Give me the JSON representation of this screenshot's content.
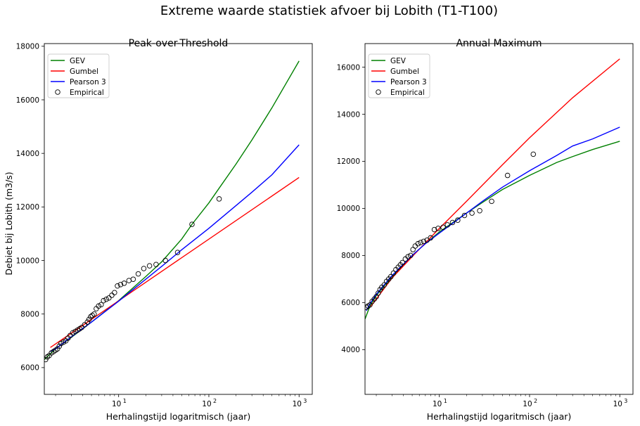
{
  "figure": {
    "title": "Extreme waarde statistiek afvoer bij Lobith (T1-T100)"
  },
  "chart_data": [
    {
      "type": "line",
      "title": "Peak-over-Threshold",
      "xlabel": "Herhalingstijd logaritmisch (jaar)",
      "ylabel": "Debiet bij Lobith (m3/s)",
      "xscale": "log",
      "xlim": [
        1.5,
        1400
      ],
      "ylim": [
        5000,
        18100
      ],
      "yticks": [
        6000,
        8000,
        10000,
        12000,
        14000,
        16000,
        18000
      ],
      "xticks": [
        {
          "value": 10,
          "base": "10",
          "exp": "1"
        },
        {
          "value": 100,
          "base": "10",
          "exp": "2"
        },
        {
          "value": 1000,
          "base": "10",
          "exp": "3"
        }
      ],
      "legend_position": "upper-left",
      "series": [
        {
          "name": "GEV",
          "color": "#008000",
          "x": [
            1.5,
            2,
            3,
            5,
            10,
            20,
            30,
            50,
            65,
            100,
            130,
            200,
            300,
            500,
            700,
            1000
          ],
          "y": [
            6300,
            6700,
            7130,
            7700,
            8500,
            9400,
            9950,
            10800,
            11350,
            12150,
            12700,
            13600,
            14500,
            15700,
            16550,
            17450
          ]
        },
        {
          "name": "Gumbel",
          "color": "#ff0000",
          "x": [
            1.75,
            1000
          ],
          "y": [
            6750,
            13100
          ]
        },
        {
          "name": "Pearson 3",
          "color": "#0000ff",
          "x": [
            1.75,
            2,
            3,
            5,
            10,
            20,
            30,
            50,
            100,
            200,
            300,
            500,
            1000
          ],
          "y": [
            6600,
            6700,
            7150,
            7700,
            8480,
            9300,
            9780,
            10400,
            11200,
            12050,
            12550,
            13200,
            14320
          ]
        },
        {
          "name": "Empirical",
          "color": "#000000",
          "marker": "circle-open",
          "x": [
            1.55,
            1.62,
            1.7,
            1.8,
            1.9,
            2.0,
            2.1,
            2.2,
            2.3,
            2.45,
            2.6,
            2.75,
            2.9,
            3.1,
            3.3,
            3.5,
            3.7,
            3.9,
            4.2,
            4.5,
            4.7,
            4.9,
            5.1,
            5.35,
            5.65,
            6.0,
            6.4,
            6.8,
            7.3,
            7.8,
            8.4,
            9.0,
            9.7,
            10.5,
            11.5,
            13.0,
            14.5,
            16.5,
            19.0,
            22.0,
            26.0,
            33.0,
            45.0,
            65.0,
            130.0
          ],
          "y": [
            6300,
            6400,
            6450,
            6550,
            6600,
            6650,
            6700,
            6800,
            6900,
            6950,
            7000,
            7100,
            7200,
            7300,
            7350,
            7400,
            7450,
            7500,
            7600,
            7700,
            7800,
            7900,
            7950,
            8000,
            8200,
            8300,
            8350,
            8500,
            8550,
            8600,
            8700,
            8800,
            9050,
            9100,
            9150,
            9250,
            9300,
            9500,
            9700,
            9800,
            9850,
            10000,
            10300,
            11350,
            12300
          ]
        }
      ]
    },
    {
      "type": "line",
      "title": "Annual Maximum",
      "xlabel": "Herhalingstijd logaritmisch (jaar)",
      "ylabel": "",
      "xscale": "log",
      "xlim": [
        1.5,
        1400
      ],
      "ylim": [
        2100,
        17000
      ],
      "yticks": [
        4000,
        6000,
        8000,
        10000,
        12000,
        14000,
        16000
      ],
      "xticks": [
        {
          "value": 10,
          "base": "10",
          "exp": "1"
        },
        {
          "value": 100,
          "base": "10",
          "exp": "2"
        },
        {
          "value": 1000,
          "base": "10",
          "exp": "3"
        }
      ],
      "legend_position": "upper-left",
      "series": [
        {
          "name": "GEV",
          "color": "#008000",
          "x": [
            1.5,
            1.7,
            2,
            3,
            5,
            7,
            10,
            20,
            30,
            50,
            100,
            200,
            300,
            500,
            1000
          ],
          "y": [
            5300,
            5850,
            6300,
            7100,
            8000,
            8500,
            9000,
            9800,
            10250,
            10800,
            11400,
            11950,
            12200,
            12500,
            12850
          ]
        },
        {
          "name": "Gumbel",
          "color": "#ff0000",
          "x": [
            1.75,
            2,
            3,
            5,
            10,
            20,
            50,
            100,
            300,
            1000
          ],
          "y": [
            5850,
            6150,
            7050,
            7950,
            9150,
            10300,
            11850,
            13000,
            14700,
            16350
          ]
        },
        {
          "name": "Pearson 3",
          "color": "#0000ff",
          "x": [
            1.55,
            1.7,
            2,
            3,
            5,
            7,
            10,
            20,
            30,
            50,
            100,
            200,
            300,
            500,
            1000
          ],
          "y": [
            5650,
            5950,
            6350,
            7150,
            8000,
            8500,
            8950,
            9800,
            10300,
            10900,
            11600,
            12250,
            12650,
            12950,
            13450
          ]
        },
        {
          "name": "Empirical",
          "color": "#000000",
          "marker": "circle-open",
          "x": [
            1.55,
            1.62,
            1.7,
            1.8,
            1.9,
            2.0,
            2.1,
            2.2,
            2.3,
            2.45,
            2.6,
            2.75,
            2.9,
            3.1,
            3.3,
            3.5,
            3.7,
            3.9,
            4.2,
            4.5,
            4.8,
            5.1,
            5.4,
            5.8,
            6.2,
            6.7,
            7.3,
            8.0,
            8.8,
            9.7,
            11.0,
            12.3,
            14.0,
            16.0,
            19.0,
            23.0,
            28.0,
            38.0,
            57.0,
            110.0
          ],
          "y": [
            5800,
            5850,
            5900,
            6050,
            6150,
            6250,
            6400,
            6550,
            6650,
            6750,
            6900,
            7000,
            7100,
            7250,
            7400,
            7500,
            7600,
            7700,
            7850,
            7950,
            8000,
            8250,
            8400,
            8500,
            8550,
            8600,
            8650,
            8750,
            9100,
            9150,
            9200,
            9300,
            9400,
            9500,
            9700,
            9800,
            9900,
            10300,
            11400,
            12300
          ]
        }
      ]
    }
  ]
}
